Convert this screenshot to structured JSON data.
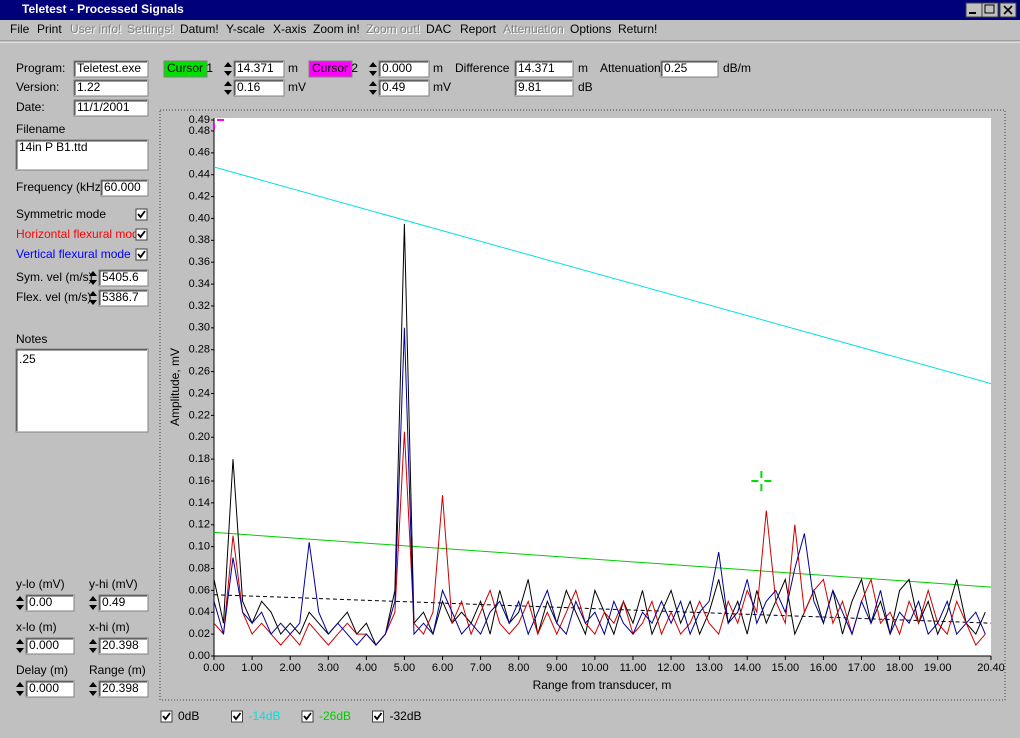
{
  "window": {
    "title": "Teletest - Processed Signals"
  },
  "menu": [
    {
      "label": "File",
      "enabled": true
    },
    {
      "label": "Print",
      "enabled": true
    },
    {
      "label": "User info!",
      "enabled": false
    },
    {
      "label": "Settings!",
      "enabled": false
    },
    {
      "label": "Datum!",
      "enabled": true
    },
    {
      "label": "Y-scale",
      "enabled": true
    },
    {
      "label": "X-axis",
      "enabled": true
    },
    {
      "label": "Zoom in!",
      "enabled": true
    },
    {
      "label": "Zoom out!",
      "enabled": false
    },
    {
      "label": "DAC",
      "enabled": true
    },
    {
      "label": "Report",
      "enabled": true
    },
    {
      "label": "Attenuation",
      "enabled": false
    },
    {
      "label": "Options",
      "enabled": true
    },
    {
      "label": "Return!",
      "enabled": true
    }
  ],
  "info": {
    "program": {
      "label": "Program:",
      "value": "Teletest.exe"
    },
    "version": {
      "label": "Version:",
      "value": "1.22"
    },
    "date": {
      "label": "Date:",
      "value": "11/1/2001"
    },
    "filename": {
      "label": "Filename",
      "value": "14in P B1.ttd"
    },
    "frequency": {
      "label": "Frequency (kHz)",
      "value": "60.000"
    },
    "sym_vel": {
      "label": "Sym. vel (m/s)",
      "value": "5405.6"
    },
    "flex_vel": {
      "label": "Flex. vel (m/s)",
      "value": "5386.7"
    },
    "notes": {
      "label": "Notes",
      "value": ".25"
    }
  },
  "limits": [
    {
      "label": "y-lo (mV)",
      "value": "0.00"
    },
    {
      "label": "y-hi (mV)",
      "value": "0.49"
    },
    {
      "label": "x-lo (m)",
      "value": "0.000"
    },
    {
      "label": "x-hi (m)",
      "value": "20.398"
    },
    {
      "label": "Delay (m)",
      "value": "0.000"
    },
    {
      "label": "Range (m)",
      "value": "20.398"
    }
  ],
  "cursors": [
    {
      "label": "Cursor 1",
      "color": "#00e000",
      "position": "14.371",
      "position_unit": "m",
      "amplitude": "0.16",
      "amplitude_unit": "mV"
    },
    {
      "label": "Cursor 2",
      "color": "#ff00ff",
      "position": "0.000",
      "position_unit": "m",
      "amplitude": "0.49",
      "amplitude_unit": "mV"
    }
  ],
  "difference": {
    "label": "Difference",
    "position": "14.371",
    "position_unit": "m",
    "level": "9.81",
    "level_unit": "dB"
  },
  "attenuation": {
    "label": "Attenuation",
    "value": "0.25",
    "unit": "dB/m"
  },
  "chart_data": {
    "type": "line",
    "xlabel": "Range from transducer, m",
    "ylabel": "Amplitude, mV",
    "xlim": [
      0,
      20.4
    ],
    "ylim": [
      0,
      0.49
    ],
    "xticks": [
      {
        "value": 0,
        "label": "0.00"
      },
      {
        "value": 1,
        "label": "1.00"
      },
      {
        "value": 2,
        "label": "2.00"
      },
      {
        "value": 3,
        "label": "3.00"
      },
      {
        "value": 4,
        "label": "4.00"
      },
      {
        "value": 5,
        "label": "5.00"
      },
      {
        "value": 6,
        "label": "6.00"
      },
      {
        "value": 7,
        "label": "7.00"
      },
      {
        "value": 8,
        "label": "8.00"
      },
      {
        "value": 9,
        "label": "9.00"
      },
      {
        "value": 10,
        "label": "10.00"
      },
      {
        "value": 11,
        "label": "11.00"
      },
      {
        "value": 12,
        "label": "12.00"
      },
      {
        "value": 13,
        "label": "13.00"
      },
      {
        "value": 14,
        "label": "14.00"
      },
      {
        "value": 15,
        "label": "15.00"
      },
      {
        "value": 16,
        "label": "16.00"
      },
      {
        "value": 17,
        "label": "17.00"
      },
      {
        "value": 18,
        "label": "18.00"
      },
      {
        "value": 19,
        "label": "19.00"
      },
      {
        "value": 20.4,
        "label": "20.40"
      }
    ],
    "yticks": [
      {
        "value": 0,
        "label": "0.00"
      },
      {
        "value": 0.02,
        "label": "0.02"
      },
      {
        "value": 0.04,
        "label": "0.04"
      },
      {
        "value": 0.06,
        "label": "0.06"
      },
      {
        "value": 0.08,
        "label": "0.08"
      },
      {
        "value": 0.1,
        "label": "0.10"
      },
      {
        "value": 0.12,
        "label": "0.12"
      },
      {
        "value": 0.14,
        "label": "0.14"
      },
      {
        "value": 0.16,
        "label": "0.16"
      },
      {
        "value": 0.18,
        "label": "0.18"
      },
      {
        "value": 0.2,
        "label": "0.20"
      },
      {
        "value": 0.22,
        "label": "0.22"
      },
      {
        "value": 0.24,
        "label": "0.24"
      },
      {
        "value": 0.26,
        "label": "0.26"
      },
      {
        "value": 0.28,
        "label": "0.28"
      },
      {
        "value": 0.3,
        "label": "0.30"
      },
      {
        "value": 0.32,
        "label": "0.32"
      },
      {
        "value": 0.34,
        "label": "0.34"
      },
      {
        "value": 0.36,
        "label": "0.36"
      },
      {
        "value": 0.38,
        "label": "0.38"
      },
      {
        "value": 0.4,
        "label": "0.40"
      },
      {
        "value": 0.42,
        "label": "0.42"
      },
      {
        "value": 0.44,
        "label": "0.44"
      },
      {
        "value": 0.46,
        "label": "0.46"
      },
      {
        "value": 0.48,
        "label": "0.48"
      },
      {
        "value": 0.49,
        "label": "0.49"
      }
    ],
    "x": [
      0,
      0.25,
      0.5,
      0.75,
      1,
      1.25,
      1.5,
      1.75,
      2,
      2.25,
      2.5,
      2.75,
      3,
      3.25,
      3.5,
      3.75,
      4,
      4.25,
      4.5,
      4.75,
      5,
      5.25,
      5.5,
      5.75,
      6,
      6.25,
      6.5,
      6.75,
      7,
      7.25,
      7.5,
      7.75,
      8,
      8.25,
      8.5,
      8.75,
      9,
      9.25,
      9.5,
      9.75,
      10,
      10.25,
      10.5,
      10.75,
      11,
      11.25,
      11.5,
      11.75,
      12,
      12.25,
      12.5,
      12.75,
      13,
      13.25,
      13.5,
      13.75,
      14,
      14.25,
      14.5,
      14.75,
      15,
      15.25,
      15.5,
      15.75,
      16,
      16.25,
      16.5,
      16.75,
      17,
      17.25,
      17.5,
      17.75,
      18,
      18.25,
      18.5,
      18.75,
      19,
      19.25,
      19.5,
      19.75,
      20,
      20.25
    ],
    "traces": [
      {
        "name": "Symmetric mode",
        "color": "#000000",
        "label_color": "#000000",
        "checked": true,
        "values": [
          0.07,
          0.03,
          0.18,
          0.05,
          0.03,
          0.05,
          0.04,
          0.02,
          0.03,
          0.02,
          0.04,
          0.03,
          0.02,
          0.03,
          0.04,
          0.02,
          0.03,
          0.01,
          0.02,
          0.06,
          0.395,
          0.03,
          0.04,
          0.02,
          0.05,
          0.03,
          0.04,
          0.03,
          0.05,
          0.02,
          0.06,
          0.03,
          0.04,
          0.07,
          0.02,
          0.05,
          0.03,
          0.06,
          0.04,
          0.02,
          0.06,
          0.04,
          0.02,
          0.05,
          0.03,
          0.06,
          0.02,
          0.04,
          0.06,
          0.03,
          0.05,
          0.02,
          0.04,
          0.07,
          0.03,
          0.05,
          0.02,
          0.06,
          0.03,
          0.05,
          0.07,
          0.02,
          0.04,
          0.06,
          0.03,
          0.06,
          0.02,
          0.05,
          0.07,
          0.03,
          0.05,
          0.02,
          0.06,
          0.07,
          0.03,
          0.05,
          0.02,
          0.04,
          0.07,
          0.03,
          0.02,
          0.04
        ]
      },
      {
        "name": "Horizontal flexural mode",
        "color": "#d00000",
        "label_color": "#ff0000",
        "checked": true,
        "values": [
          0.03,
          0.02,
          0.11,
          0.04,
          0.02,
          0.03,
          0.02,
          0.01,
          0.02,
          0.01,
          0.03,
          0.02,
          0.01,
          0.02,
          0.03,
          0.02,
          0.02,
          0.01,
          0.02,
          0.04,
          0.205,
          0.03,
          0.02,
          0.04,
          0.147,
          0.03,
          0.05,
          0.02,
          0.04,
          0.06,
          0.03,
          0.02,
          0.03,
          0.05,
          0.02,
          0.04,
          0.02,
          0.04,
          0.06,
          0.03,
          0.02,
          0.04,
          0.03,
          0.05,
          0.02,
          0.03,
          0.05,
          0.02,
          0.04,
          0.02,
          0.03,
          0.05,
          0.03,
          0.02,
          0.05,
          0.03,
          0.06,
          0.04,
          0.133,
          0.05,
          0.03,
          0.12,
          0.04,
          0.06,
          0.07,
          0.03,
          0.05,
          0.02,
          0.05,
          0.07,
          0.03,
          0.04,
          0.02,
          0.05,
          0.03,
          0.06,
          0.03,
          0.02,
          0.05,
          0.03,
          0.01,
          0.02
        ]
      },
      {
        "name": "Vertical flexural mode",
        "color": "#000099",
        "label_color": "#0000ff",
        "checked": true,
        "values": [
          0.05,
          0.02,
          0.09,
          0.04,
          0.03,
          0.04,
          0.02,
          0.03,
          0.02,
          0.03,
          0.104,
          0.04,
          0.02,
          0.03,
          0.02,
          0.01,
          0.02,
          0.01,
          0.02,
          0.05,
          0.3,
          0.02,
          0.03,
          0.02,
          0.06,
          0.04,
          0.02,
          0.03,
          0.02,
          0.04,
          0.05,
          0.03,
          0.05,
          0.02,
          0.04,
          0.06,
          0.03,
          0.02,
          0.05,
          0.03,
          0.04,
          0.02,
          0.05,
          0.03,
          0.02,
          0.04,
          0.03,
          0.05,
          0.03,
          0.05,
          0.02,
          0.04,
          0.05,
          0.095,
          0.03,
          0.04,
          0.07,
          0.03,
          0.05,
          0.06,
          0.04,
          0.08,
          0.112,
          0.05,
          0.03,
          0.06,
          0.04,
          0.02,
          0.05,
          0.03,
          0.06,
          0.02,
          0.04,
          0.03,
          0.05,
          0.02,
          0.03,
          0.05,
          0.02,
          0.03,
          0.04,
          0.02
        ]
      }
    ],
    "series": [
      {
        "name": "0dB",
        "color": "#000000",
        "dash": false,
        "checked": true,
        "x": [
          0,
          20.4
        ],
        "values": [
          null,
          null
        ]
      },
      {
        "name": "-14dB",
        "color": "#00e0e0",
        "dash": false,
        "checked": true,
        "x": [
          0,
          20.4
        ],
        "values": [
          0.447,
          0.249
        ]
      },
      {
        "name": "-26dB",
        "color": "#00cc00",
        "dash": false,
        "checked": true,
        "x": [
          0,
          20.4
        ],
        "values": [
          0.113,
          0.063
        ]
      },
      {
        "name": "-32dB",
        "color": "#000000",
        "dash": true,
        "checked": true,
        "x": [
          0,
          20.4
        ],
        "values": [
          0.056,
          0.03
        ]
      }
    ]
  }
}
